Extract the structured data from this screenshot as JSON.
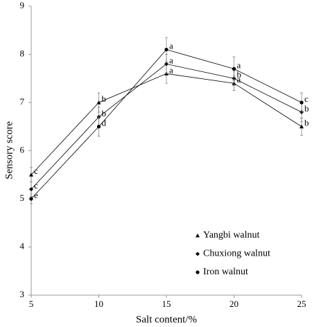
{
  "chart_data": {
    "type": "line",
    "x_label": "Salt content/%",
    "y_label": "Sensory score",
    "x": [
      5,
      10,
      15,
      20,
      25
    ],
    "series": [
      {
        "name": "Yangbi walnut",
        "color": "#000000",
        "marker": "triangle",
        "values": [
          5.5,
          7.0,
          7.6,
          7.4,
          6.5
        ],
        "errors": [
          0.15,
          0.2,
          0.2,
          0.15,
          0.18
        ],
        "letters": [
          "c",
          "b",
          "a",
          "a",
          "b"
        ]
      },
      {
        "name": "Chuxiong walnut",
        "color": "#000000",
        "marker": "diamond",
        "values": [
          5.2,
          6.7,
          7.8,
          7.5,
          6.8
        ],
        "errors": [
          0.15,
          0.2,
          0.2,
          0.15,
          0.2
        ],
        "letters": [
          "c",
          "b",
          "a",
          "b",
          "b"
        ]
      },
      {
        "name": "Iron walnut",
        "color": "#000000",
        "marker": "circle",
        "values": [
          5.0,
          6.5,
          8.1,
          7.7,
          7.0
        ],
        "errors": [
          0.1,
          0.2,
          0.25,
          0.25,
          0.2
        ],
        "letters": [
          "e",
          "d",
          "a",
          "a",
          "c"
        ]
      }
    ],
    "xlim": [
      5,
      25
    ],
    "xticks": [
      5,
      10,
      15,
      20,
      25
    ],
    "ylim": [
      3,
      9
    ],
    "yticks": [
      3,
      4,
      5,
      6,
      7,
      8,
      9
    ],
    "grid": false,
    "legend": "lower-right"
  }
}
